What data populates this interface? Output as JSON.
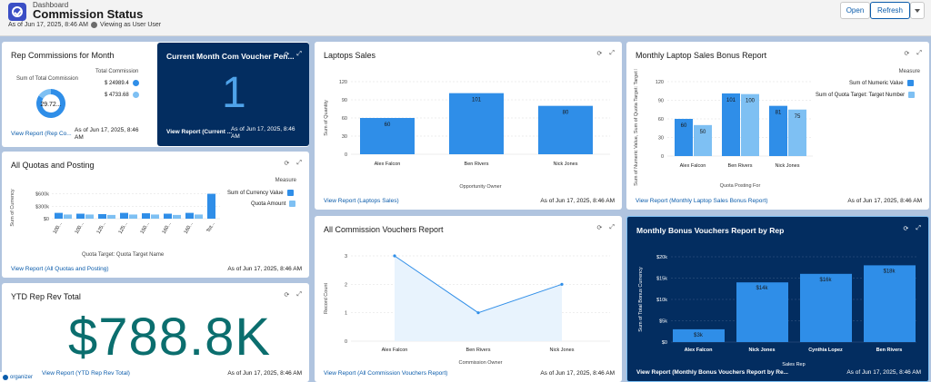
{
  "header": {
    "breadcrumb": "Dashboard",
    "title": "Commission Status",
    "as_of": "As of Jun 17, 2025, 8:46 AM",
    "viewing_as": "Viewing as User User",
    "open_label": "Open",
    "refresh_label": "Refresh"
  },
  "organizer_label": "organizer",
  "rep_commissions": {
    "title": "Rep Commissions for Month",
    "sum_label": "Sum of Total Commission",
    "center_value": "29.72...",
    "legend_title": "Total Commission",
    "legend": [
      "$ 24989.4",
      "$ 4733.68"
    ],
    "link": "View Report (Rep Co...",
    "as_of": "As of Jun 17, 2025, 8:46 AM"
  },
  "current_voucher": {
    "title": "Current Month Com Voucher Pen...",
    "value": "1",
    "link": "View Report (Current ...",
    "as_of": "As of Jun 17, 2025, 8:46 AM"
  },
  "quotas": {
    "title": "All Quotas and Posting",
    "ylabel": "Sum of Currency",
    "xlabel": "Quota Target: Quota Target Name",
    "legend_title": "Measure",
    "link": "View Report (All Quotas and Posting)",
    "as_of": "As of Jun 17, 2025, 8:46 AM"
  },
  "ytd": {
    "title": "YTD Rep Rev Total",
    "value": "$788.8K",
    "link": "View Report (YTD Rep Rev Total)",
    "as_of": "As of Jun 17, 2025, 8:46 AM"
  },
  "laptops": {
    "title": "Laptops Sales",
    "link": "View Report (Laptops Sales)",
    "as_of": "As of Jun 17, 2025, 8:46 AM"
  },
  "vouchers": {
    "title": "All Commission Vouchers Report",
    "link": "View Report (All Commission Vouchers Report)",
    "as_of": "As of Jun 17, 2025, 8:46 AM"
  },
  "bonus_report": {
    "title": "Monthly Laptop Sales Bonus Report",
    "legend_title": "Measure",
    "link": "View Report (Monthly Laptop Sales Bonus Report)",
    "as_of": "As of Jun 17, 2025, 8:46 AM"
  },
  "bonus_vouchers": {
    "title": "Monthly Bonus Vouchers Report by Rep",
    "link": "View Report (Monthly Bonus Vouchers Report by Re...",
    "as_of": "As of Jun 17, 2025, 8:46 AM"
  },
  "colors": {
    "primary": "#2f8ee8",
    "secondary": "#7ec0f3",
    "dark_card": "#032d60",
    "kpi_teal": "#0b6e6e"
  },
  "chart_data": [
    {
      "id": "laptops",
      "type": "bar",
      "categories": [
        "Alex Falcon",
        "Ben Rivers",
        "Nick Jones"
      ],
      "values": [
        60,
        101,
        80
      ],
      "value_labels": [
        "60",
        "101",
        "80"
      ],
      "xlabel": "Opportunity Owner",
      "ylabel": "Sum of Quantity",
      "yticks": [
        "0",
        "30",
        "60",
        "90",
        "120"
      ],
      "ylim": [
        0,
        120
      ]
    },
    {
      "id": "vouchers",
      "type": "area",
      "categories": [
        "Alex Falcon",
        "Ben Rivers",
        "Nick Jones"
      ],
      "values": [
        3,
        1,
        2
      ],
      "xlabel": "Commission Owner",
      "ylabel": "Record Count",
      "yticks": [
        "0",
        "1",
        "2",
        "3"
      ],
      "ylim": [
        0,
        3
      ]
    },
    {
      "id": "bonus_report",
      "type": "bar",
      "categories": [
        "Alex Falcon",
        "Ben Rivers",
        "Nick Jones"
      ],
      "series": [
        {
          "name": "Sum of Numeric Value",
          "values": [
            60,
            101,
            81
          ],
          "labels": [
            "60",
            "101",
            "81"
          ]
        },
        {
          "name": "Sum of Quota Target: Target Number",
          "values": [
            50,
            100,
            75
          ],
          "labels": [
            "50",
            "100",
            "75"
          ]
        }
      ],
      "xlabel": "Quota Posting For",
      "ylabel": "Sum of Numeric Value, Sum of Quota Target: Target Number",
      "yticks": [
        "0",
        "30",
        "60",
        "90",
        "120"
      ],
      "ylim": [
        0,
        120
      ]
    },
    {
      "id": "bonus_vouchers",
      "type": "bar",
      "categories": [
        "Alex Falcon",
        "Nick Jones",
        "Cynthia Lopez",
        "Ben Rivers"
      ],
      "values": [
        3000,
        14000,
        16000,
        18000
      ],
      "value_labels": [
        "$3k",
        "$14k",
        "$16k",
        "$18k"
      ],
      "xlabel": "Sales Rep",
      "ylabel": "Sum of Total Bonus Currency",
      "yticks": [
        "$0",
        "$5k",
        "$10k",
        "$15k",
        "$20k"
      ],
      "ylim": [
        0,
        20000
      ]
    },
    {
      "id": "quotas",
      "type": "bar",
      "categories": [
        "100...",
        "100...",
        "125...",
        "125...",
        "150...",
        "160...",
        "160...",
        "Tot..."
      ],
      "series": [
        {
          "name": "Sum of Currency Value",
          "values": [
            140000,
            120000,
            110000,
            140000,
            130000,
            120000,
            140000,
            600000
          ]
        },
        {
          "name": "Quota Amount",
          "values": [
            100000,
            100000,
            90000,
            100000,
            100000,
            90000,
            100000,
            0
          ]
        }
      ],
      "yticks": [
        "$0",
        "$300k",
        "$600k"
      ],
      "ylim": [
        0,
        700000
      ]
    },
    {
      "id": "rep_commissions",
      "type": "pie",
      "labels": [
        "$ 24989.4",
        "$ 4733.68"
      ],
      "values": [
        24989.4,
        4733.68
      ]
    }
  ]
}
